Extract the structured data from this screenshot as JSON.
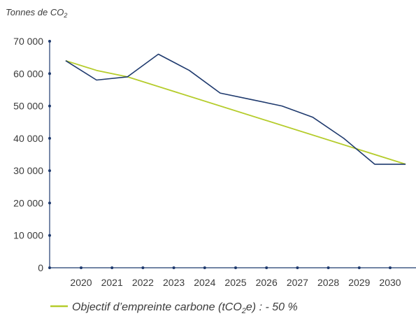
{
  "chart_data": {
    "type": "line",
    "ylabel": "Tonnes de CO",
    "ylabel_sub": "2",
    "ylim": [
      0,
      70000
    ],
    "y_ticks": [
      0,
      10000,
      20000,
      30000,
      40000,
      50000,
      60000,
      70000
    ],
    "y_tick_labels": [
      "0",
      "10 000",
      "20 000",
      "30 000",
      "40 000",
      "50 000",
      "60 000",
      "70 000"
    ],
    "x_ticks": [
      2020,
      2021,
      2022,
      2023,
      2024,
      2025,
      2026,
      2027,
      2028,
      2029,
      2030
    ],
    "x_tick_labels": [
      "2020",
      "2021",
      "2022",
      "2023",
      "2024",
      "2025",
      "2026",
      "2027",
      "2028",
      "2029",
      "2030"
    ],
    "grid": false,
    "legend_position": "bottom-left",
    "series": [
      {
        "color": "#1f3a6e",
        "x": [
          2019.5,
          2020.5,
          2021.5,
          2022.5,
          2023.5,
          2024.5,
          2025.5,
          2026.5,
          2027.5,
          2028.5,
          2029.5,
          2030.5
        ],
        "values": [
          64000,
          58000,
          59000,
          66000,
          61000,
          54000,
          52000,
          50000,
          46500,
          40000,
          32000,
          32000
        ]
      },
      {
        "name": "Objectif d’empreinte carbone (tCO",
        "name_sub": "2",
        "name_suffix": "e) : - 50 %",
        "color": "#b5cc2b",
        "x": [
          2019.5,
          2020.5,
          2021.5,
          2030.5
        ],
        "values": [
          64000,
          61000,
          59000,
          32000
        ]
      }
    ]
  }
}
